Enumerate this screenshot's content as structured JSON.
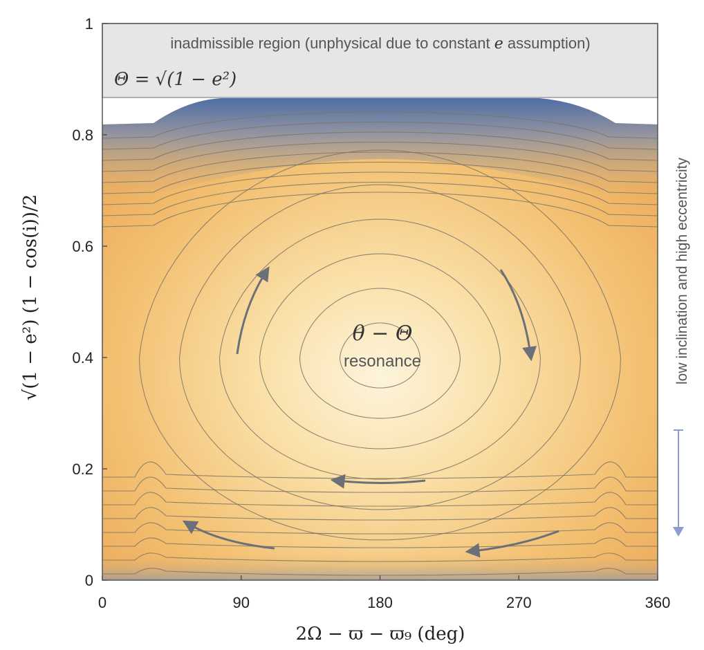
{
  "chart_data": {
    "type": "contour",
    "xlabel": "2Ω − ϖ − ϖ₉ (deg)",
    "ylabel": "√(1 − e²) (1 − cos(i))/2",
    "xlim": [
      0,
      360
    ],
    "ylim": [
      0,
      1
    ],
    "xticks": [
      0,
      90,
      180,
      270,
      360
    ],
    "xtick_labels": [
      "0",
      "90",
      "180",
      "270",
      "360"
    ],
    "yticks": [
      0,
      0.2,
      0.4,
      0.6,
      0.8,
      1
    ],
    "ytick_labels": [
      "0",
      "0.2",
      "0.4",
      "0.6",
      "0.8",
      "1"
    ],
    "inadmissible_region": {
      "y_from": 0.866,
      "y_to": 1,
      "label": "inadmissible region (unphysical due to constant e assumption)",
      "formula": "Θ = √(1 − e²)"
    },
    "resonance_center": {
      "x": 180,
      "y": 0.4
    },
    "center_label": {
      "symbol": "θ − Θ",
      "text": "resonance"
    },
    "side_annotation": "low inclination and high eccentricity",
    "colors": {
      "center": "#fdf3d8",
      "mid": "#f0b865",
      "edge": "#5575b4",
      "region": "#e6e6e6",
      "arrow": "#8d9bd0"
    }
  }
}
